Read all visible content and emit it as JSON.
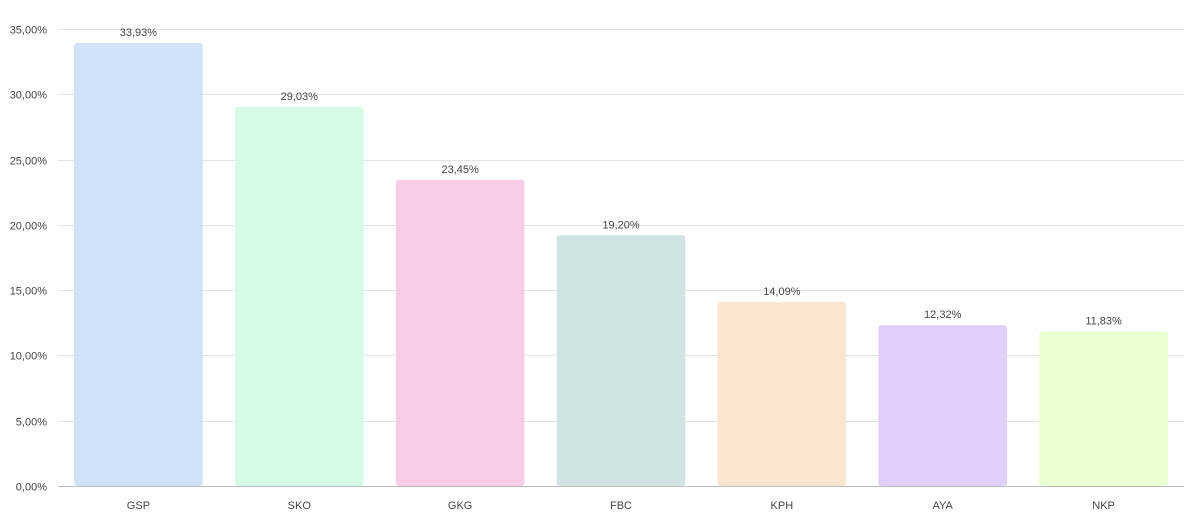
{
  "chart_data": {
    "type": "bar",
    "categories": [
      "GSP",
      "SKO",
      "GKG",
      "FBC",
      "KPH",
      "AYA",
      "NKP"
    ],
    "values": [
      33.93,
      29.03,
      23.45,
      19.2,
      14.09,
      12.32,
      11.83
    ],
    "data_labels": [
      "33,93%",
      "29,03%",
      "23,45%",
      "19,20%",
      "14,09%",
      "12,32%",
      "11,83%"
    ],
    "colors": [
      "#cfe2f8",
      "#d5fbe6",
      "#f6cde4",
      "#d1e3e2",
      "#fbe5cf",
      "#e0cffa",
      "#eaffd2"
    ],
    "ylim": [
      0,
      35
    ],
    "y_ticks": [
      0,
      5,
      10,
      15,
      20,
      25,
      30,
      35
    ],
    "y_tick_labels": [
      "0,00%",
      "5,00%",
      "10,00%",
      "15,00%",
      "20,00%",
      "25,00%",
      "30,00%",
      "35,00%"
    ],
    "grid": true,
    "title": "",
    "xlabel": "",
    "ylabel": ""
  }
}
